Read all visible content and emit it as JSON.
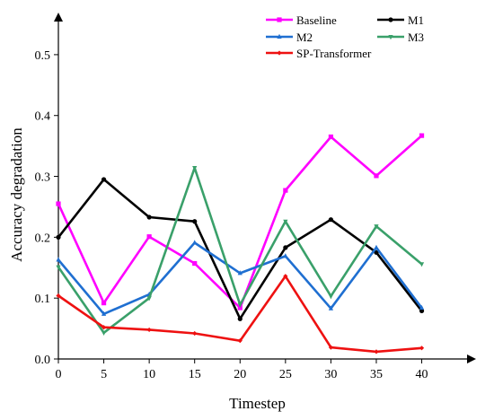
{
  "chart_data": {
    "type": "line",
    "title": "",
    "xlabel": "Timestep",
    "ylabel": "Accuracy degradation",
    "x": [
      0,
      5,
      10,
      15,
      20,
      25,
      30,
      35,
      40
    ],
    "xlim": [
      0,
      44
    ],
    "ylim": [
      0,
      0.55
    ],
    "xticks": [
      "0",
      "5",
      "10",
      "15",
      "20",
      "25",
      "30",
      "35",
      "40"
    ],
    "yticks": [
      "0.0",
      "0.1",
      "0.2",
      "0.3",
      "0.4",
      "0.5"
    ],
    "grid": false,
    "legend_position": "top-right",
    "series": [
      {
        "name": "Baseline",
        "color": "#ff00ff",
        "marker": "square",
        "values": [
          0.255,
          0.092,
          0.201,
          0.157,
          0.084,
          0.277,
          0.365,
          0.301,
          0.367
        ]
      },
      {
        "name": "M1",
        "color": "#000000",
        "marker": "circle",
        "values": [
          0.2,
          0.295,
          0.233,
          0.226,
          0.066,
          0.183,
          0.229,
          0.175,
          0.079
        ]
      },
      {
        "name": "M2",
        "color": "#1f6fd1",
        "marker": "triangle",
        "values": [
          0.163,
          0.074,
          0.106,
          0.191,
          0.141,
          0.169,
          0.083,
          0.183,
          0.084
        ]
      },
      {
        "name": "M3",
        "color": "#3aa06a",
        "marker": "down-triangle",
        "values": [
          0.151,
          0.043,
          0.1,
          0.314,
          0.089,
          0.226,
          0.103,
          0.218,
          0.156
        ]
      },
      {
        "name": "SP-Transformer",
        "color": "#ee1111",
        "marker": "diamond",
        "values": [
          0.104,
          0.052,
          0.048,
          0.042,
          0.03,
          0.136,
          0.019,
          0.012,
          0.018
        ]
      }
    ]
  }
}
